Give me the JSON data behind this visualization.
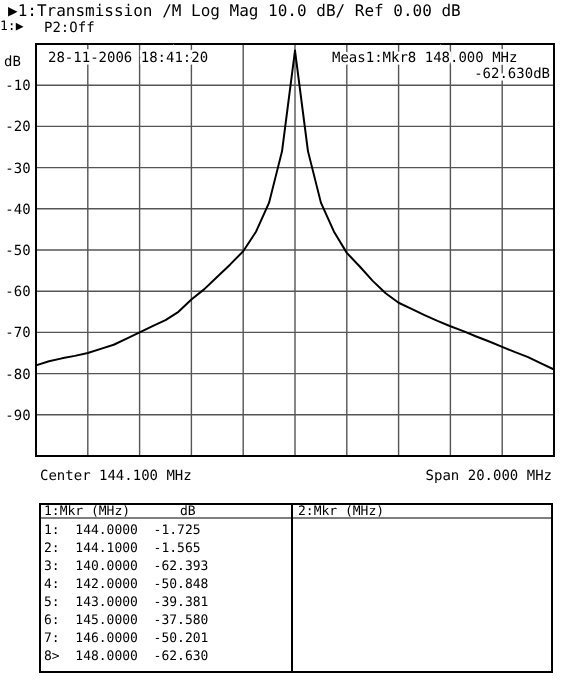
{
  "chart_data": {
    "type": "line",
    "title": "▶1:Transmission /M Log Mag 10.0 dB/ Ref 0.00 dB",
    "subtitle": "P2:Off",
    "ylabel": "dB",
    "annotations": [
      "1:▶",
      "28-11-2006 18:41:20",
      "Meas1:Mkr8 148.000 MHz",
      "-62.630dB",
      "Center 144.100 MHz",
      "Span 20.000 MHz",
      "1:Mkr (MHz)",
      "dB",
      "2:Mkr (MHz)",
      "1:  144.0000  -1.725",
      "2:  144.1000  -1.565",
      "3:  140.0000  -62.393",
      "4:  142.0000  -50.848",
      "5:  143.0000  -39.381",
      "6:  145.0000  -37.580",
      "7:  146.0000  -50.201",
      "8>  148.0000  -62.630"
    ],
    "categories": [
      null,
      null,
      null,
      null,
      null,
      null,
      null,
      null,
      null,
      null,
      null,
      null,
      null,
      null,
      null,
      null,
      null,
      null,
      null,
      null,
      null,
      null,
      null,
      null,
      null,
      null,
      null,
      null,
      null,
      null,
      null,
      null,
      null,
      null,
      null,
      null,
      null,
      null,
      null,
      null,
      null
    ],
    "ylim": [
      -100,
      0
    ],
    "yticks": [
      -10,
      -20,
      -30,
      -40,
      -50,
      -60,
      -70,
      -80,
      -90
    ],
    "tick_labels": "y",
    "grid": true,
    "marker": "none",
    "series": [
      {
        "color": "#000000",
        "values": [
          -78,
          -77,
          -76.3,
          -75.7,
          -75,
          -74,
          -73,
          -71.5,
          -70,
          -68.5,
          -67,
          -65,
          -62,
          -59.5,
          -56.5,
          -53.5,
          -50.3,
          -45.5,
          -38.5,
          -26,
          -1.6,
          -26,
          -38.5,
          -45.5,
          -50.7,
          -54,
          -57.5,
          -60.5,
          -62.8,
          -64.3,
          -65.8,
          -67.2,
          -68.5,
          -69.7,
          -71,
          -72.2,
          -73.5,
          -74.8,
          -76,
          -77.5,
          -79
        ]
      }
    ]
  }
}
